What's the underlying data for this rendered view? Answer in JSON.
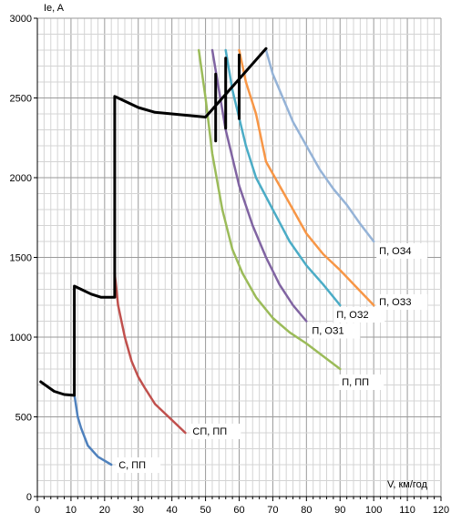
{
  "chart_data": {
    "type": "line",
    "ylabel": "Ie, A",
    "xlabel": "V, км/год",
    "xlim": [
      0,
      120
    ],
    "ylim": [
      0,
      3000
    ],
    "x_ticks": [
      "0",
      "10",
      "20",
      "30",
      "40",
      "50",
      "60",
      "70",
      "80",
      "90",
      "100",
      "110",
      "120"
    ],
    "y_ticks": [
      "0",
      "500",
      "1000",
      "1500",
      "2000",
      "2500",
      "3000"
    ],
    "grid": true,
    "series": [
      {
        "name": "С, ПП",
        "color": "#4F81BD",
        "points": [
          [
            11,
            640
          ],
          [
            12,
            500
          ],
          [
            13,
            430
          ],
          [
            15,
            320
          ],
          [
            18,
            250
          ],
          [
            22,
            200
          ]
        ]
      },
      {
        "name": "СП, ПП",
        "color": "#C0504D",
        "points": [
          [
            23,
            1400
          ],
          [
            24,
            1200
          ],
          [
            26,
            1000
          ],
          [
            28,
            850
          ],
          [
            30,
            750
          ],
          [
            32,
            680
          ],
          [
            35,
            580
          ],
          [
            40,
            480
          ],
          [
            44,
            400
          ]
        ]
      },
      {
        "name": "П, ПП",
        "color": "#9BBB59",
        "points": [
          [
            48,
            2800
          ],
          [
            50,
            2500
          ],
          [
            52,
            2150
          ],
          [
            55,
            1800
          ],
          [
            58,
            1550
          ],
          [
            61,
            1400
          ],
          [
            65,
            1250
          ],
          [
            70,
            1120
          ],
          [
            75,
            1030
          ],
          [
            80,
            960
          ],
          [
            85,
            880
          ],
          [
            90,
            800
          ]
        ]
      },
      {
        "name": "П, ОЗ1",
        "color": "#8064A2",
        "points": [
          [
            52,
            2800
          ],
          [
            54,
            2550
          ],
          [
            56,
            2300
          ],
          [
            60,
            1950
          ],
          [
            64,
            1700
          ],
          [
            68,
            1500
          ],
          [
            72,
            1330
          ],
          [
            76,
            1200
          ],
          [
            80,
            1100
          ]
        ]
      },
      {
        "name": "П, ОЗ2",
        "color": "#4BACC6",
        "points": [
          [
            56,
            2800
          ],
          [
            58,
            2550
          ],
          [
            62,
            2200
          ],
          [
            65,
            2000
          ],
          [
            70,
            1800
          ],
          [
            75,
            1600
          ],
          [
            80,
            1450
          ],
          [
            85,
            1330
          ],
          [
            90,
            1200
          ]
        ]
      },
      {
        "name": "П, ОЗ3",
        "color": "#F79646",
        "points": [
          [
            60,
            2800
          ],
          [
            62,
            2600
          ],
          [
            65,
            2400
          ],
          [
            68,
            2100
          ],
          [
            72,
            1950
          ],
          [
            76,
            1800
          ],
          [
            80,
            1650
          ],
          [
            85,
            1520
          ],
          [
            90,
            1420
          ],
          [
            95,
            1310
          ],
          [
            100,
            1200
          ]
        ]
      },
      {
        "name": "П, ОЗ4",
        "color": "#95B3D7",
        "points": [
          [
            68,
            2800
          ],
          [
            70,
            2650
          ],
          [
            73,
            2500
          ],
          [
            76,
            2350
          ],
          [
            80,
            2200
          ],
          [
            84,
            2050
          ],
          [
            88,
            1930
          ],
          [
            92,
            1830
          ],
          [
            96,
            1710
          ],
          [
            100,
            1600
          ]
        ]
      },
      {
        "name": "",
        "color": "#000000",
        "points": [
          [
            1,
            720
          ],
          [
            3,
            690
          ],
          [
            5,
            660
          ],
          [
            8,
            640
          ],
          [
            11,
            635
          ],
          [
            11,
            1320
          ],
          [
            13,
            1300
          ],
          [
            16,
            1270
          ],
          [
            19,
            1250
          ],
          [
            23,
            1250
          ],
          [
            23,
            2510
          ],
          [
            26,
            2480
          ],
          [
            30,
            2440
          ],
          [
            35,
            2410
          ],
          [
            40,
            2400
          ],
          [
            45,
            2390
          ],
          [
            50,
            2380
          ],
          [
            68,
            2810
          ]
        ]
      },
      {
        "name": "",
        "color": "#000000",
        "points": [
          [
            53,
            2230
          ],
          [
            53,
            2650
          ]
        ]
      },
      {
        "name": "",
        "color": "#000000",
        "points": [
          [
            56,
            2310
          ],
          [
            56,
            2750
          ]
        ]
      },
      {
        "name": "",
        "color": "#000000",
        "points": [
          [
            60,
            2370
          ],
          [
            60,
            2770
          ]
        ]
      }
    ]
  }
}
